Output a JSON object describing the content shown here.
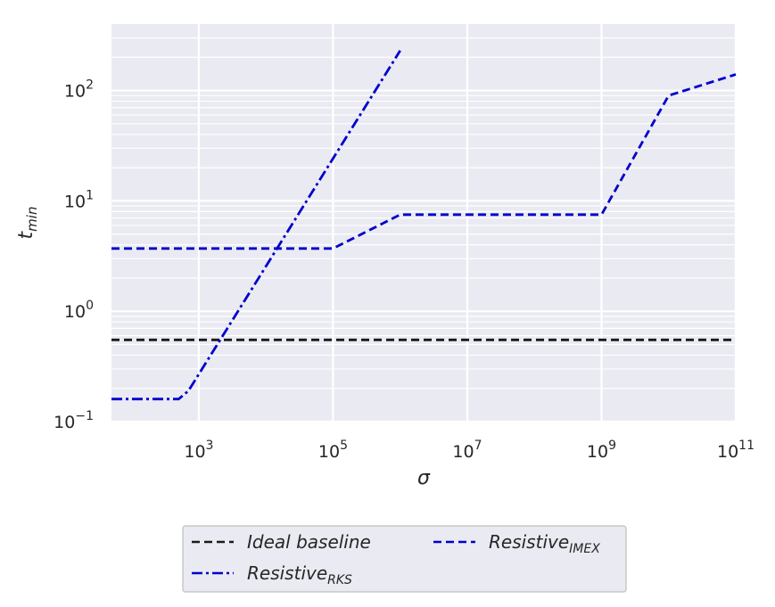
{
  "chart_data": {
    "type": "line",
    "xlabel": "σ",
    "ylabel": {
      "base": "t",
      "sub": "min"
    },
    "xscale": "log",
    "yscale": "log",
    "xlim": [
      50,
      100000000000
    ],
    "ylim": [
      0.1,
      400
    ],
    "xticks": [
      {
        "value": 1000,
        "base": "10",
        "exp": "3"
      },
      {
        "value": 100000,
        "base": "10",
        "exp": "5"
      },
      {
        "value": 10000000,
        "base": "10",
        "exp": "7"
      },
      {
        "value": 1000000000,
        "base": "10",
        "exp": "9"
      },
      {
        "value": 100000000000,
        "base": "10",
        "exp": "11"
      }
    ],
    "yticks": [
      {
        "value": 0.1,
        "base": "10",
        "exp": "−1"
      },
      {
        "value": 1,
        "base": "10",
        "exp": "0"
      },
      {
        "value": 10,
        "base": "10",
        "exp": "1"
      },
      {
        "value": 100,
        "base": "10",
        "exp": "2"
      }
    ],
    "grid": true,
    "legend_position": "below",
    "series": [
      {
        "name": "Ideal baseline",
        "name_sub": "",
        "color": "#1a1a1a",
        "dash": "dashed",
        "x": [
          50,
          100000000000
        ],
        "y": [
          0.55,
          0.55
        ]
      },
      {
        "name": "Resistive",
        "name_sub": "RKS",
        "color": "#0000cc",
        "dash": "dashdot",
        "x": [
          50,
          500,
          700,
          1000000
        ],
        "y": [
          0.16,
          0.16,
          0.19,
          230
        ]
      },
      {
        "name": "Resistive",
        "name_sub": "IMEX",
        "color": "#0000cc",
        "dash": "dashed",
        "x": [
          50,
          100000,
          1000000,
          1000000000,
          10000000000,
          100000000000
        ],
        "y": [
          3.7,
          3.7,
          7.5,
          7.5,
          90,
          140
        ]
      }
    ]
  }
}
